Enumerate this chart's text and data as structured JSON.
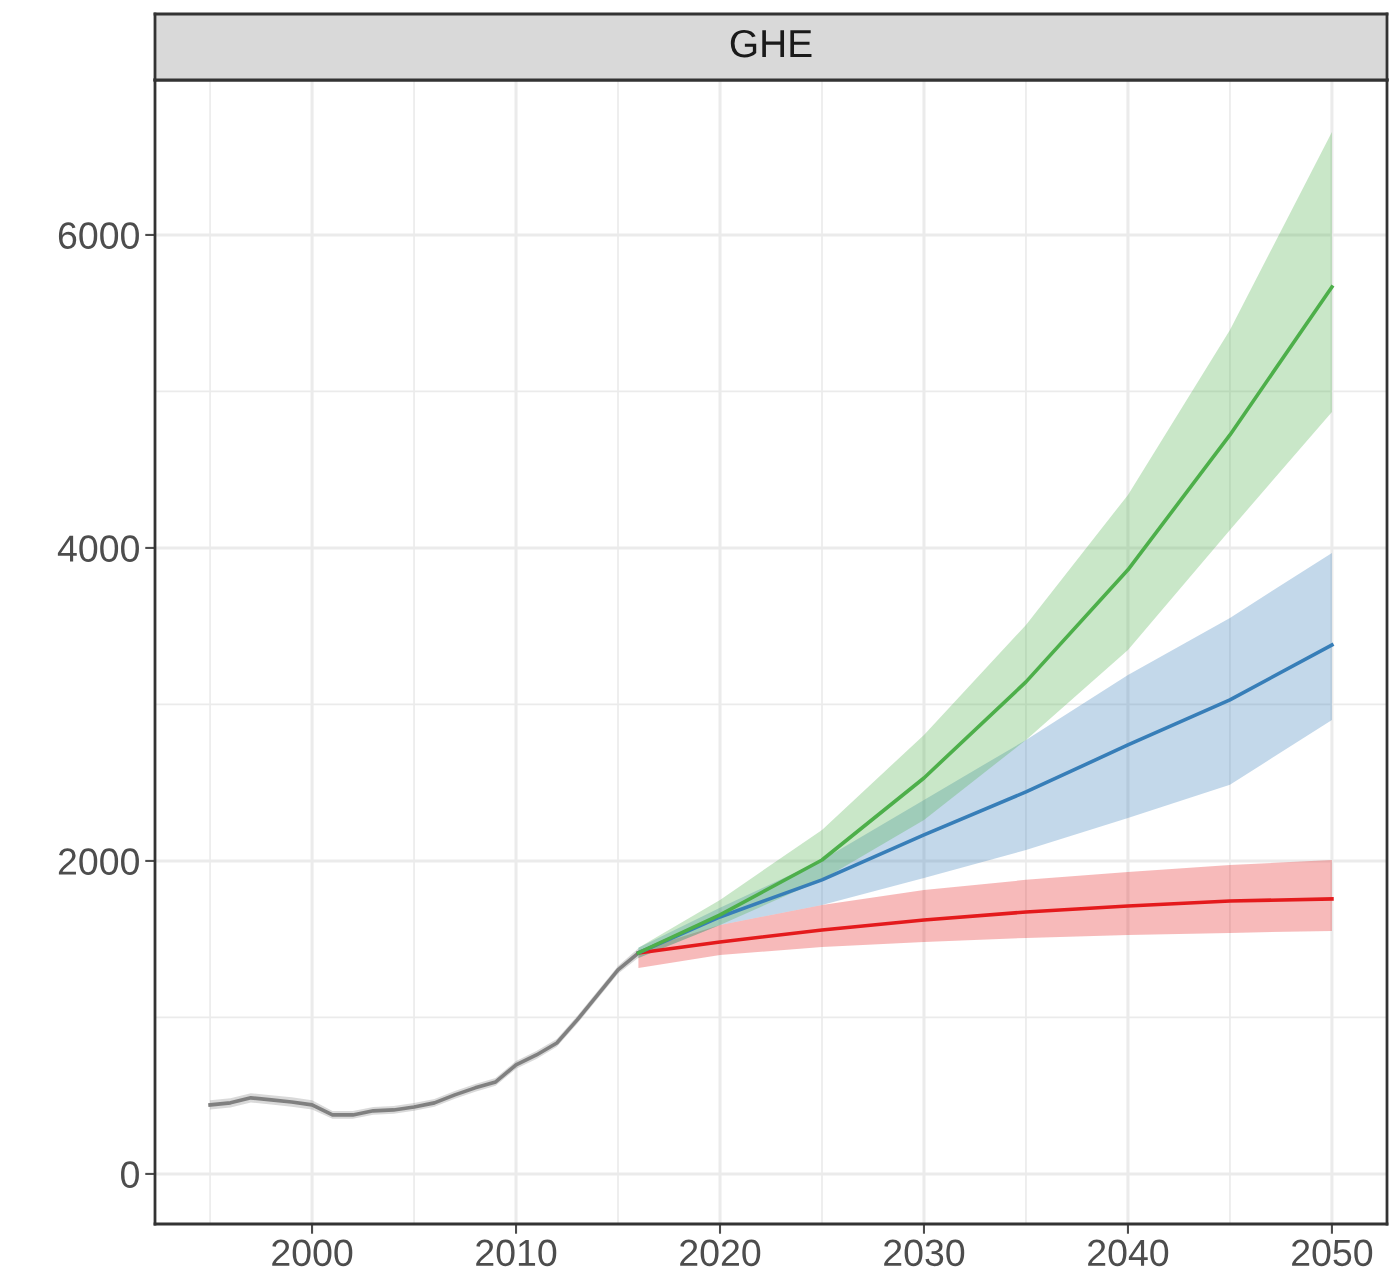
{
  "chart_data": {
    "type": "line",
    "title": "GHE",
    "xlim": [
      1992.3,
      2052.7
    ],
    "ylim": [
      -320,
      6990
    ],
    "xticks": [
      {
        "value": 1995,
        "label": null
      },
      2000,
      {
        "value": 2005,
        "label": null
      },
      2010,
      {
        "value": 2015,
        "label": null
      },
      2020,
      {
        "value": 2025,
        "label": null
      },
      2030,
      {
        "value": 2035,
        "label": null
      },
      2040,
      {
        "value": 2045,
        "label": null
      },
      2050
    ],
    "yticks": [
      0,
      {
        "value": 1000,
        "label": null
      },
      2000,
      {
        "value": 3000,
        "label": null
      },
      4000,
      {
        "value": 5000,
        "label": null
      },
      6000
    ],
    "grid": true,
    "legend": false,
    "series": [
      {
        "color": "#808080",
        "x": [
          1995,
          1996,
          1997,
          1998,
          1999,
          2000,
          2001,
          2002,
          2003,
          2004,
          2005,
          2006,
          2007,
          2008,
          2009,
          2010,
          2011,
          2012,
          2013,
          2014,
          2015,
          2016
        ],
        "values": [
          441,
          454,
          486,
          473,
          460,
          441,
          377,
          377,
          403,
          409,
          428,
          454,
          505,
          550,
          588,
          697,
          760,
          837,
          984,
          1144,
          1304,
          1412
        ],
        "lower": [
          411,
          424,
          456,
          443,
          430,
          411,
          352,
          352,
          378,
          384,
          403,
          429,
          480,
          525,
          563,
          672,
          735,
          812,
          959,
          1119,
          1279,
          1382
        ],
        "upper": [
          471,
          484,
          516,
          503,
          490,
          471,
          402,
          402,
          428,
          434,
          453,
          479,
          530,
          575,
          613,
          722,
          785,
          862,
          1009,
          1169,
          1329,
          1442
        ]
      },
      {
        "color": "#e41a1c",
        "x": [
          2016,
          2020,
          2025,
          2030,
          2035,
          2040,
          2045,
          2050
        ],
        "values": [
          1412,
          1482,
          1559,
          1623,
          1674,
          1712,
          1744,
          1757
        ],
        "lower": [
          1316,
          1399,
          1450,
          1482,
          1508,
          1527,
          1540,
          1553
        ],
        "upper": [
          1430,
          1591,
          1719,
          1815,
          1879,
          1930,
          1974,
          2006
        ]
      },
      {
        "color": "#377eb8",
        "x": [
          2016,
          2020,
          2025,
          2030,
          2035,
          2040,
          2045,
          2050
        ],
        "values": [
          1412,
          1642,
          1879,
          2166,
          2441,
          2741,
          3029,
          3380
        ],
        "lower": [
          1380,
          1591,
          1719,
          1891,
          2070,
          2275,
          2486,
          2901
        ],
        "upper": [
          1445,
          1700,
          2006,
          2390,
          2773,
          3188,
          3553,
          3968
        ]
      },
      {
        "color": "#4daf4a",
        "x": [
          2016,
          2020,
          2025,
          2030,
          2035,
          2040,
          2045,
          2050
        ],
        "values": [
          1412,
          1655,
          2006,
          2530,
          3144,
          3860,
          4722,
          5668
        ],
        "lower": [
          1380,
          1591,
          1879,
          2262,
          2773,
          3348,
          4115,
          4869
        ],
        "upper": [
          1445,
          1751,
          2198,
          2805,
          3508,
          4339,
          5393,
          6658
        ]
      }
    ]
  }
}
